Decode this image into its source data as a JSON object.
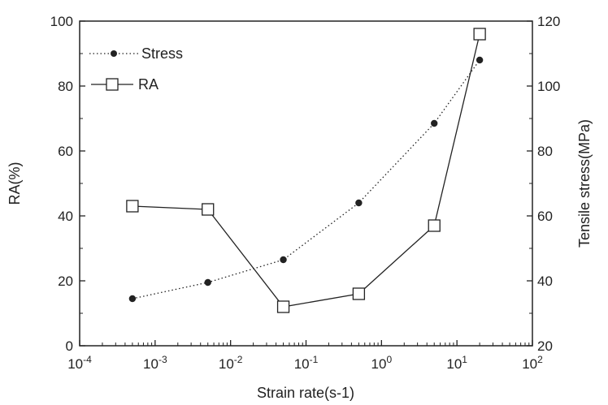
{
  "chart_data": {
    "type": "line",
    "xlabel": "Strain rate(s-1)",
    "ylabel_left": "RA(%)",
    "ylabel_right": "Tensile stress(MPa)",
    "x_scale": "log",
    "x_range": [
      0.0001,
      100
    ],
    "y_left_range": [
      0,
      100
    ],
    "y_right_range": [
      20,
      120
    ],
    "x_ticks": [
      {
        "base": "10",
        "exp": "-4"
      },
      {
        "base": "10",
        "exp": "-3"
      },
      {
        "base": "10",
        "exp": "-2"
      },
      {
        "base": "10",
        "exp": "-1"
      },
      {
        "base": "10",
        "exp": "0"
      },
      {
        "base": "10",
        "exp": "1"
      },
      {
        "base": "10",
        "exp": "2"
      }
    ],
    "y_left_ticks": [
      "0",
      "20",
      "40",
      "60",
      "80",
      "100"
    ],
    "y_right_ticks": [
      "20",
      "40",
      "60",
      "80",
      "100",
      "120"
    ],
    "legend_position": "top-left",
    "series": [
      {
        "name": "Stress",
        "axis": "right",
        "marker": "filled-circle",
        "line": "dotted",
        "x": [
          0.0005,
          0.005,
          0.05,
          0.5,
          5,
          20
        ],
        "y": [
          34.5,
          39.5,
          46.5,
          64,
          88.5,
          108
        ]
      },
      {
        "name": "RA",
        "axis": "left",
        "marker": "open-square",
        "line": "solid",
        "x": [
          0.0005,
          0.005,
          0.05,
          0.5,
          5,
          20
        ],
        "y": [
          43,
          42,
          12,
          16,
          37,
          96
        ]
      }
    ],
    "colors": {
      "ink": "#222222",
      "background": "#ffffff"
    }
  }
}
